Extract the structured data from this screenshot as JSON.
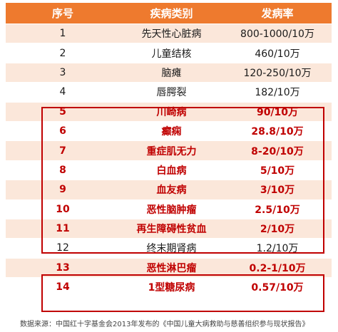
{
  "colors": {
    "header_bg": "#ee7a2e",
    "stripe": "#fbe7da",
    "highlight": "#c00000"
  },
  "table": {
    "headers": [
      "序号",
      "疾病类别",
      "发病率"
    ],
    "rows": [
      {
        "no": "1",
        "disease": "先天性心脏病",
        "rate": "800-1000/10万",
        "highlight": false
      },
      {
        "no": "2",
        "disease": "儿童结核",
        "rate": "460/10万",
        "highlight": false
      },
      {
        "no": "3",
        "disease": "脑瘫",
        "rate": "120-250/10万",
        "highlight": false
      },
      {
        "no": "4",
        "disease": "唇腭裂",
        "rate": "182/10万",
        "highlight": false
      },
      {
        "no": "5",
        "disease": "川崎病",
        "rate": "90/10万",
        "highlight": true
      },
      {
        "no": "6",
        "disease": "癫痫",
        "rate": "28.8/10万",
        "highlight": true
      },
      {
        "no": "7",
        "disease": "重症肌无力",
        "rate": "8-20/10万",
        "highlight": true
      },
      {
        "no": "8",
        "disease": "白血病",
        "rate": "5/10万",
        "highlight": true
      },
      {
        "no": "9",
        "disease": "血友病",
        "rate": "3/10万",
        "highlight": true
      },
      {
        "no": "10",
        "disease": "恶性脑肿瘤",
        "rate": "2.5/10万",
        "highlight": true
      },
      {
        "no": "11",
        "disease": "再生障碍性贫血",
        "rate": "2/10万",
        "highlight": true
      },
      {
        "no": "12",
        "disease": "终末期肾病",
        "rate": "1.2/10万",
        "highlight": false
      },
      {
        "no": "13",
        "disease": "恶性淋巴瘤",
        "rate": "0.2-1/10万",
        "highlight": true
      },
      {
        "no": "14",
        "disease": "1型糖尿病",
        "rate": "0.57/10万",
        "highlight": true
      }
    ]
  },
  "source": "数据来源：中国红十字基金会2013年发布的《中国儿童大病救助与慈善组织参与现状报告》"
}
